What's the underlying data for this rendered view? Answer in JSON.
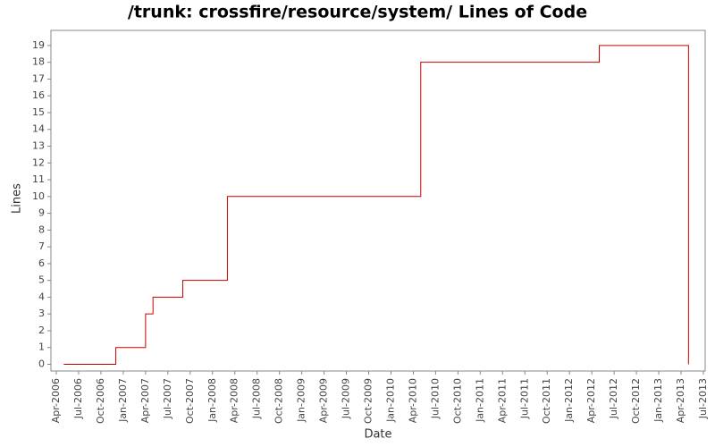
{
  "chart_data": {
    "type": "step-line",
    "title": "/trunk: crossfire/resource/system/ Lines of Code",
    "x_label": "Date",
    "y_label": "Lines",
    "x": [
      "2006-05",
      "2006-12",
      "2007-04",
      "2007-05",
      "2007-09",
      "2008-03",
      "2010-05",
      "2012-05",
      "2013-05"
    ],
    "series": [
      {
        "name": "Lines",
        "color": "#cc0000",
        "values": [
          0,
          1,
          3,
          4,
          5,
          10,
          18,
          19,
          0
        ]
      }
    ],
    "xlim": [
      "2006-04",
      "2013-07"
    ],
    "xticks": [
      {
        "value": "2006-04",
        "label": "Apr-2006"
      },
      {
        "value": "2006-07",
        "label": "Jul-2006"
      },
      {
        "value": "2006-10",
        "label": "Oct-2006"
      },
      {
        "value": "2007-01",
        "label": "Jan-2007"
      },
      {
        "value": "2007-04",
        "label": "Apr-2007"
      },
      {
        "value": "2007-07",
        "label": "Jul-2007"
      },
      {
        "value": "2007-10",
        "label": "Oct-2007"
      },
      {
        "value": "2008-01",
        "label": "Jan-2008"
      },
      {
        "value": "2008-04",
        "label": "Apr-2008"
      },
      {
        "value": "2008-07",
        "label": "Jul-2008"
      },
      {
        "value": "2008-10",
        "label": "Oct-2008"
      },
      {
        "value": "2009-01",
        "label": "Jan-2009"
      },
      {
        "value": "2009-04",
        "label": "Apr-2009"
      },
      {
        "value": "2009-07",
        "label": "Jul-2009"
      },
      {
        "value": "2009-10",
        "label": "Oct-2009"
      },
      {
        "value": "2010-01",
        "label": "Jan-2010"
      },
      {
        "value": "2010-04",
        "label": "Apr-2010"
      },
      {
        "value": "2010-07",
        "label": "Jul-2010"
      },
      {
        "value": "2010-10",
        "label": "Oct-2010"
      },
      {
        "value": "2011-01",
        "label": "Jan-2011"
      },
      {
        "value": "2011-04",
        "label": "Apr-2011"
      },
      {
        "value": "2011-07",
        "label": "Jul-2011"
      },
      {
        "value": "2011-10",
        "label": "Oct-2011"
      },
      {
        "value": "2012-01",
        "label": "Jan-2012"
      },
      {
        "value": "2012-04",
        "label": "Apr-2012"
      },
      {
        "value": "2012-07",
        "label": "Jul-2012"
      },
      {
        "value": "2012-10",
        "label": "Oct-2012"
      },
      {
        "value": "2013-01",
        "label": "Jan-2013"
      },
      {
        "value": "2013-04",
        "label": "Apr-2013"
      },
      {
        "value": "2013-07",
        "label": "Jul-2013"
      }
    ],
    "ylim": [
      -0.4,
      19.9
    ],
    "yticks": [
      0,
      1,
      2,
      3,
      4,
      5,
      6,
      7,
      8,
      9,
      10,
      11,
      12,
      13,
      14,
      15,
      16,
      17,
      18,
      19
    ],
    "grid": false
  }
}
